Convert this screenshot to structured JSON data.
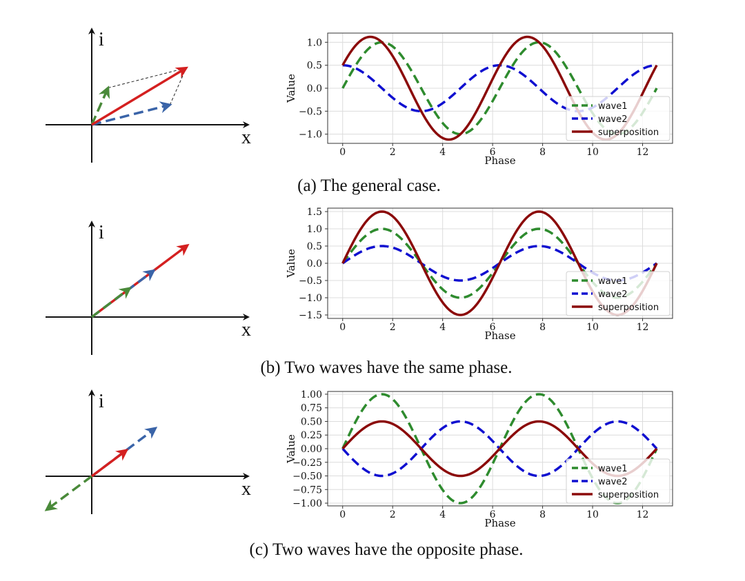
{
  "figure": {
    "panels": [
      {
        "caption": "(a) The general case.",
        "phasor": {
          "i_label": "i",
          "x_label": "x",
          "vectors": [
            {
              "name": "wave1",
              "color": "#4a8a3a",
              "dashed": true,
              "re": 0.23,
              "im": 0.52
            },
            {
              "name": "wave2",
              "color": "#3a64a8",
              "dashed": true,
              "re": 1.1,
              "im": 0.28
            },
            {
              "name": "superposition",
              "color": "#d42020",
              "dashed": false,
              "re": 1.33,
              "im": 0.8
            }
          ],
          "parallelogram": true
        },
        "chart_data": {
          "type": "line",
          "xlabel": "Phase",
          "ylabel": "Value",
          "xlim": [
            -0.6,
            13.2
          ],
          "ylim": [
            -1.2,
            1.2
          ],
          "xticks": [
            0,
            2,
            4,
            6,
            8,
            10,
            12
          ],
          "xtick_labels": [
            "0",
            "2",
            "4",
            "6",
            "8",
            "10",
            "12"
          ],
          "yticks": [
            1.0,
            0.5,
            0.0,
            -0.5,
            -1.0
          ],
          "ytick_labels": [
            "1.0",
            "0.5",
            "0.0",
            "−0.5",
            "−1.0"
          ],
          "grid": true,
          "legend_position": "lower-right",
          "series": [
            {
              "name": "wave1",
              "color": "#2e8b2e",
              "style": "dashed",
              "amplitude": 1.0,
              "phase": 0.0
            },
            {
              "name": "wave2",
              "color": "#1010d0",
              "style": "dashed",
              "amplitude": 0.5,
              "phase": 1.5708
            },
            {
              "name": "superposition",
              "color": "#8b0a0a",
              "style": "solid",
              "amplitude": 1.118,
              "phase": 0.4636
            }
          ]
        }
      },
      {
        "caption": "(b) Two waves have the same phase.",
        "phasor": {
          "i_label": "i",
          "x_label": "x",
          "vectors": [
            {
              "name": "superposition",
              "color": "#d42020",
              "dashed": false,
              "re": 1.36,
              "im": 1.02
            },
            {
              "name": "wave2",
              "color": "#3a64a8",
              "dashed": true,
              "re": 0.88,
              "im": 0.66
            },
            {
              "name": "wave1",
              "color": "#4a8a3a",
              "dashed": true,
              "re": 0.54,
              "im": 0.41
            }
          ],
          "parallelogram": false
        },
        "chart_data": {
          "type": "line",
          "xlabel": "Phase",
          "ylabel": "Value",
          "xlim": [
            -0.6,
            13.2
          ],
          "ylim": [
            -1.6,
            1.6
          ],
          "xticks": [
            0,
            2,
            4,
            6,
            8,
            10,
            12
          ],
          "xtick_labels": [
            "0",
            "2",
            "4",
            "6",
            "8",
            "10",
            "12"
          ],
          "yticks": [
            1.5,
            1.0,
            0.5,
            0.0,
            -0.5,
            -1.0,
            -1.5
          ],
          "ytick_labels": [
            "1.5",
            "1.0",
            "0.5",
            "0.0",
            "−0.5",
            "−1.0",
            "−1.5"
          ],
          "grid": true,
          "legend_position": "lower-right",
          "series": [
            {
              "name": "wave1",
              "color": "#2e8b2e",
              "style": "dashed",
              "amplitude": 1.0,
              "phase": 0.0
            },
            {
              "name": "wave2",
              "color": "#1010d0",
              "style": "dashed",
              "amplitude": 0.5,
              "phase": 0.0
            },
            {
              "name": "superposition",
              "color": "#8b0a0a",
              "style": "solid",
              "amplitude": 1.5,
              "phase": 0.0
            }
          ]
        }
      },
      {
        "caption": "(c) Two waves have the opposite phase.",
        "phasor": {
          "i_label": "i",
          "x_label": "x",
          "vectors": [
            {
              "name": "wave1",
              "color": "#4a8a3a",
              "dashed": true,
              "re": -0.78,
              "im": -0.58
            },
            {
              "name": "wave2",
              "color": "#3a64a8",
              "dashed": true,
              "re": 1.1,
              "im": 0.83
            },
            {
              "name": "superposition",
              "color": "#d42020",
              "dashed": false,
              "re": 0.6,
              "im": 0.45
            }
          ],
          "parallelogram": false
        },
        "chart_data": {
          "type": "line",
          "xlabel": "Phase",
          "ylabel": "Value",
          "xlim": [
            -0.6,
            13.2
          ],
          "ylim": [
            -1.05,
            1.05
          ],
          "xticks": [
            0,
            2,
            4,
            6,
            8,
            10,
            12
          ],
          "xtick_labels": [
            "0",
            "2",
            "4",
            "6",
            "8",
            "10",
            "12"
          ],
          "yticks": [
            1.0,
            0.75,
            0.5,
            0.25,
            0.0,
            -0.25,
            -0.5,
            -0.75,
            -1.0
          ],
          "ytick_labels": [
            "1.00",
            "0.75",
            "0.50",
            "0.25",
            "0.00",
            "−0.25",
            "−0.50",
            "−0.75",
            "−1.00"
          ],
          "grid": true,
          "legend_position": "lower-right",
          "series": [
            {
              "name": "wave1",
              "color": "#2e8b2e",
              "style": "dashed",
              "amplitude": 1.0,
              "phase": 0.0
            },
            {
              "name": "wave2",
              "color": "#1010d0",
              "style": "dashed",
              "amplitude": 0.5,
              "phase": 3.1416
            },
            {
              "name": "superposition",
              "color": "#8b0a0a",
              "style": "solid",
              "amplitude": 0.5,
              "phase": 0.0
            }
          ]
        }
      }
    ]
  }
}
